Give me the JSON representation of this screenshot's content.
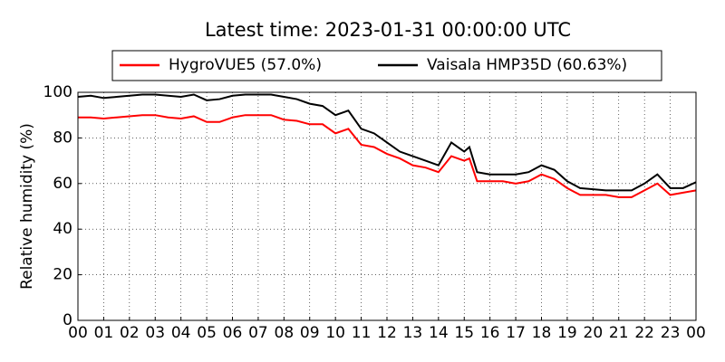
{
  "chart_data": {
    "type": "line",
    "title": "Latest time: 2023-01-31 00:00:00 UTC",
    "y_label": "Relative humidity (%)",
    "x": [
      0,
      0.5,
      1,
      1.5,
      2,
      2.5,
      3,
      3.5,
      4,
      4.5,
      5,
      5.5,
      6,
      6.5,
      7,
      7.5,
      8,
      8.5,
      9,
      9.5,
      10,
      10.5,
      11,
      11.5,
      12,
      12.5,
      13,
      13.5,
      14,
      14.5,
      15,
      15.2,
      15.5,
      16,
      16.5,
      17,
      17.5,
      18,
      18.5,
      19,
      19.5,
      20,
      20.5,
      21,
      21.5,
      22,
      22.5,
      23,
      23.5,
      24
    ],
    "series": [
      {
        "name": "HygroVUE5 (57.0%)",
        "color": "#ff0000",
        "values": [
          89,
          89,
          88.5,
          89,
          89.5,
          90,
          90,
          89,
          88.5,
          89.5,
          87,
          87,
          89,
          90,
          90,
          90,
          88,
          87.5,
          86,
          86,
          82,
          84,
          77,
          76,
          73,
          71,
          68,
          67,
          65,
          72,
          70,
          71,
          61,
          61,
          61,
          60,
          61,
          64,
          62,
          58,
          55,
          55,
          55,
          54,
          54,
          57,
          60,
          55,
          56,
          57
        ]
      },
      {
        "name": "Vaisala HMP35D (60.63%)",
        "color": "#000000",
        "values": [
          98,
          98.5,
          97.5,
          98,
          98.5,
          99,
          99,
          98.5,
          98,
          99,
          96.5,
          97,
          98.5,
          99,
          99,
          99,
          98,
          97,
          95,
          94,
          90,
          92,
          84,
          82,
          78,
          74,
          72,
          70,
          68,
          78,
          74,
          76,
          65,
          64,
          64,
          64,
          65,
          68,
          66,
          61,
          58,
          57.5,
          57,
          57,
          57,
          60,
          64,
          58,
          58,
          60.6
        ]
      }
    ],
    "xlim": [
      0,
      24
    ],
    "xticks": [
      {
        "value": 0,
        "label": "00"
      },
      {
        "value": 1,
        "label": "01"
      },
      {
        "value": 2,
        "label": "02"
      },
      {
        "value": 3,
        "label": "03"
      },
      {
        "value": 4,
        "label": "04"
      },
      {
        "value": 5,
        "label": "05"
      },
      {
        "value": 6,
        "label": "06"
      },
      {
        "value": 7,
        "label": "07"
      },
      {
        "value": 8,
        "label": "08"
      },
      {
        "value": 9,
        "label": "09"
      },
      {
        "value": 10,
        "label": "10"
      },
      {
        "value": 11,
        "label": "11"
      },
      {
        "value": 12,
        "label": "12"
      },
      {
        "value": 13,
        "label": "13"
      },
      {
        "value": 14,
        "label": "14"
      },
      {
        "value": 15,
        "label": "15"
      },
      {
        "value": 16,
        "label": "16"
      },
      {
        "value": 17,
        "label": "17"
      },
      {
        "value": 18,
        "label": "18"
      },
      {
        "value": 19,
        "label": "19"
      },
      {
        "value": 20,
        "label": "20"
      },
      {
        "value": 21,
        "label": "21"
      },
      {
        "value": 22,
        "label": "22"
      },
      {
        "value": 23,
        "label": "23"
      },
      {
        "value": 24,
        "label": "00"
      }
    ],
    "ylim": [
      0,
      100
    ],
    "yticks": [
      0,
      20,
      40,
      60,
      80,
      100
    ],
    "grid": true,
    "legend": "top"
  }
}
